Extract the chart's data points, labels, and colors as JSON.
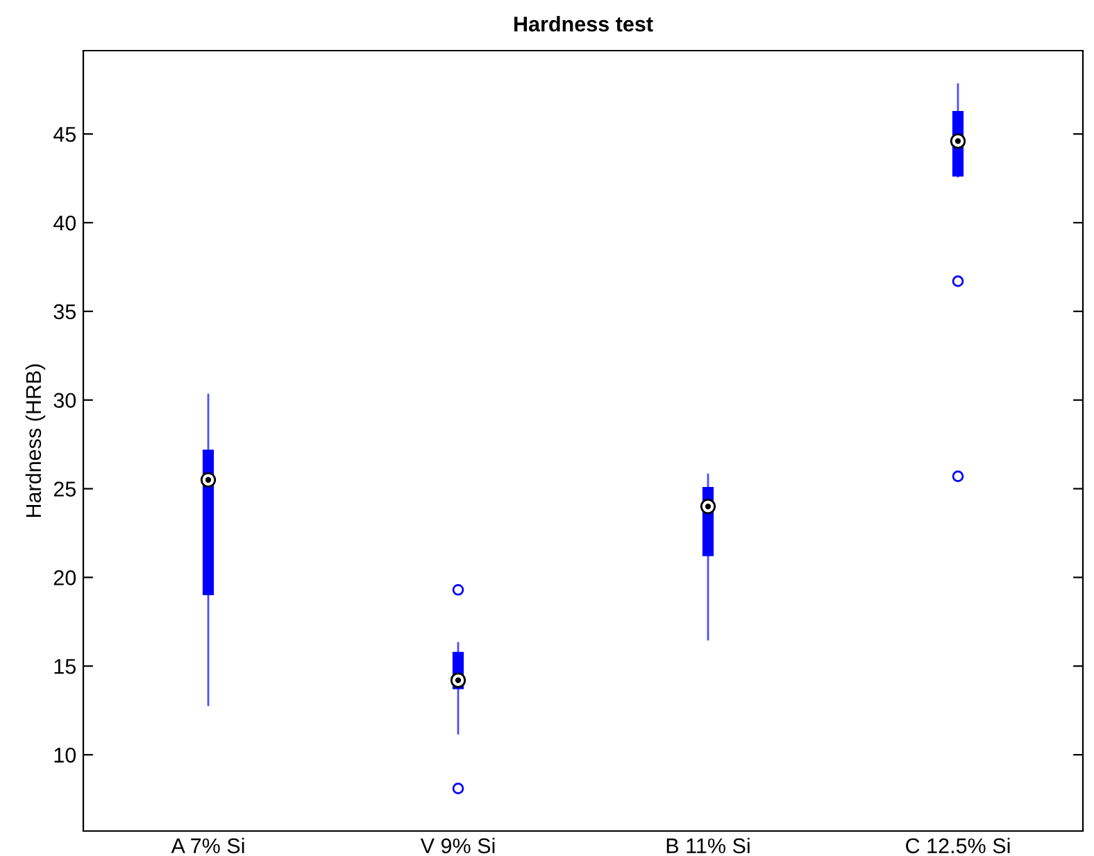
{
  "chart_data": {
    "type": "box",
    "title": "Hardness test",
    "ylabel": "Hardness (HRB)",
    "categories": [
      "A 7% Si",
      "V 9% Si",
      "B 11% Si",
      "C 12.5% Si"
    ],
    "color": "#0000ff",
    "boxes": [
      {
        "low": 12.8,
        "q1": 19.0,
        "median": 25.5,
        "q3": 27.2,
        "high": 30.3
      },
      {
        "low": 11.2,
        "q1": 13.7,
        "median": 14.2,
        "q3": 15.8,
        "high": 16.3,
        "outliers": [
          19.3,
          8.1
        ]
      },
      {
        "low": 16.5,
        "q1": 21.2,
        "median": 24.0,
        "q3": 25.1,
        "high": 25.8
      },
      {
        "low": 42.6,
        "q1": 42.6,
        "median": 44.6,
        "q3": 46.3,
        "high": 47.8,
        "outliers": [
          36.7,
          25.7
        ]
      }
    ],
    "ylim": [
      5.7,
      49.7
    ],
    "yticks": [
      10,
      15,
      20,
      25,
      30,
      35,
      40,
      45
    ]
  }
}
